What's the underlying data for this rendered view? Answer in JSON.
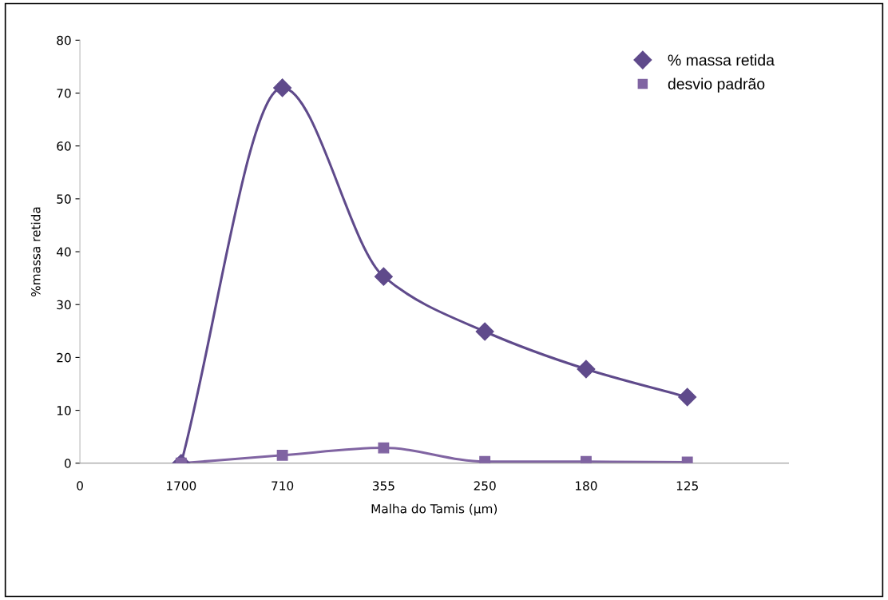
{
  "chart_data": {
    "type": "line",
    "xlabel": "Malha do Tamis (µm)",
    "ylabel": "%massa retida",
    "categories": [
      "0",
      "1700",
      "710",
      "355",
      "250",
      "180",
      "125",
      null
    ],
    "series": [
      {
        "name": "% massa retida",
        "color": "#5f4a8b",
        "marker": "diamond",
        "values": [
          null,
          0,
          71,
          35.3,
          24.9,
          17.8,
          12.5,
          null
        ]
      },
      {
        "name": "desvio padrão",
        "color": "#8064a2",
        "marker": "square",
        "values": [
          null,
          0,
          1.5,
          2.9,
          0.3,
          0.3,
          0.2,
          null
        ]
      }
    ],
    "ylim": [
      0,
      80
    ],
    "yticks": [
      0,
      10,
      20,
      30,
      40,
      50,
      60,
      70,
      80
    ],
    "grid": false,
    "legend": "top right"
  }
}
